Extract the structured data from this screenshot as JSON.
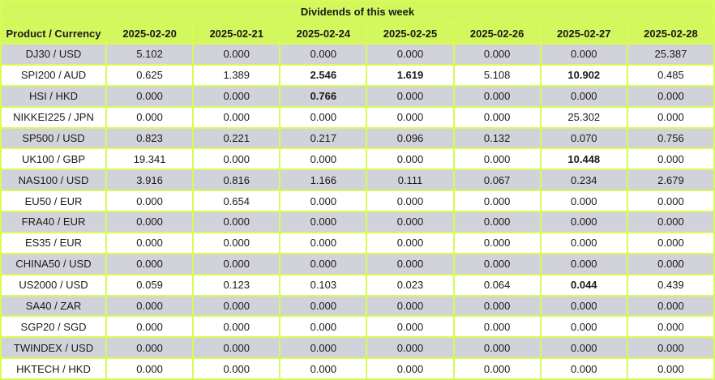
{
  "colors": {
    "header_bg": "#d3f75e",
    "grid": "#d8fb55",
    "row_alt_bg": "#d2d2da",
    "row_bg": "#ffffff",
    "text": "#1a1a1a"
  },
  "chart_data": {
    "type": "table",
    "title": "Dividends of this week",
    "columns": [
      "Product / Currency",
      "2025-02-20",
      "2025-02-21",
      "2025-02-24",
      "2025-02-25",
      "2025-02-26",
      "2025-02-27",
      "2025-02-28"
    ],
    "rows": [
      {
        "product": "DJ30 / USD",
        "values": [
          "5.102",
          "0.000",
          "0.000",
          "0.000",
          "0.000",
          "0.000",
          "25.387"
        ],
        "bold": [
          false,
          false,
          false,
          false,
          false,
          false,
          false
        ]
      },
      {
        "product": "SPI200 / AUD",
        "values": [
          "0.625",
          "1.389",
          "2.546",
          "1.619",
          "5.108",
          "10.902",
          "0.485"
        ],
        "bold": [
          false,
          false,
          true,
          true,
          false,
          true,
          false
        ]
      },
      {
        "product": "HSI / HKD",
        "values": [
          "0.000",
          "0.000",
          "0.766",
          "0.000",
          "0.000",
          "0.000",
          "0.000"
        ],
        "bold": [
          false,
          false,
          true,
          false,
          false,
          false,
          false
        ]
      },
      {
        "product": "NIKKEI225 / JPN",
        "values": [
          "0.000",
          "0.000",
          "0.000",
          "0.000",
          "0.000",
          "25.302",
          "0.000"
        ],
        "bold": [
          false,
          false,
          false,
          false,
          false,
          false,
          false
        ]
      },
      {
        "product": "SP500 / USD",
        "values": [
          "0.823",
          "0.221",
          "0.217",
          "0.096",
          "0.132",
          "0.070",
          "0.756"
        ],
        "bold": [
          false,
          false,
          false,
          false,
          false,
          false,
          false
        ]
      },
      {
        "product": "UK100 / GBP",
        "values": [
          "19.341",
          "0.000",
          "0.000",
          "0.000",
          "0.000",
          "10.448",
          "0.000"
        ],
        "bold": [
          false,
          false,
          false,
          false,
          false,
          true,
          false
        ]
      },
      {
        "product": "NAS100 / USD",
        "values": [
          "3.916",
          "0.816",
          "1.166",
          "0.111",
          "0.067",
          "0.234",
          "2.679"
        ],
        "bold": [
          false,
          false,
          false,
          false,
          false,
          false,
          false
        ]
      },
      {
        "product": "EU50 / EUR",
        "values": [
          "0.000",
          "0.654",
          "0.000",
          "0.000",
          "0.000",
          "0.000",
          "0.000"
        ],
        "bold": [
          false,
          false,
          false,
          false,
          false,
          false,
          false
        ]
      },
      {
        "product": "FRA40 / EUR",
        "values": [
          "0.000",
          "0.000",
          "0.000",
          "0.000",
          "0.000",
          "0.000",
          "0.000"
        ],
        "bold": [
          false,
          false,
          false,
          false,
          false,
          false,
          false
        ]
      },
      {
        "product": "ES35 / EUR",
        "values": [
          "0.000",
          "0.000",
          "0.000",
          "0.000",
          "0.000",
          "0.000",
          "0.000"
        ],
        "bold": [
          false,
          false,
          false,
          false,
          false,
          false,
          false
        ]
      },
      {
        "product": "CHINA50 / USD",
        "values": [
          "0.000",
          "0.000",
          "0.000",
          "0.000",
          "0.000",
          "0.000",
          "0.000"
        ],
        "bold": [
          false,
          false,
          false,
          false,
          false,
          false,
          false
        ]
      },
      {
        "product": "US2000 / USD",
        "values": [
          "0.059",
          "0.123",
          "0.103",
          "0.023",
          "0.064",
          "0.044",
          "0.439"
        ],
        "bold": [
          false,
          false,
          false,
          false,
          false,
          true,
          false
        ]
      },
      {
        "product": "SA40 / ZAR",
        "values": [
          "0.000",
          "0.000",
          "0.000",
          "0.000",
          "0.000",
          "0.000",
          "0.000"
        ],
        "bold": [
          false,
          false,
          false,
          false,
          false,
          false,
          false
        ]
      },
      {
        "product": "SGP20 / SGD",
        "values": [
          "0.000",
          "0.000",
          "0.000",
          "0.000",
          "0.000",
          "0.000",
          "0.000"
        ],
        "bold": [
          false,
          false,
          false,
          false,
          false,
          false,
          false
        ]
      },
      {
        "product": "TWINDEX / USD",
        "values": [
          "0.000",
          "0.000",
          "0.000",
          "0.000",
          "0.000",
          "0.000",
          "0.000"
        ],
        "bold": [
          false,
          false,
          false,
          false,
          false,
          false,
          false
        ]
      },
      {
        "product": "HKTECH / HKD",
        "values": [
          "0.000",
          "0.000",
          "0.000",
          "0.000",
          "0.000",
          "0.000",
          "0.000"
        ],
        "bold": [
          false,
          false,
          false,
          false,
          false,
          false,
          false
        ]
      }
    ]
  }
}
